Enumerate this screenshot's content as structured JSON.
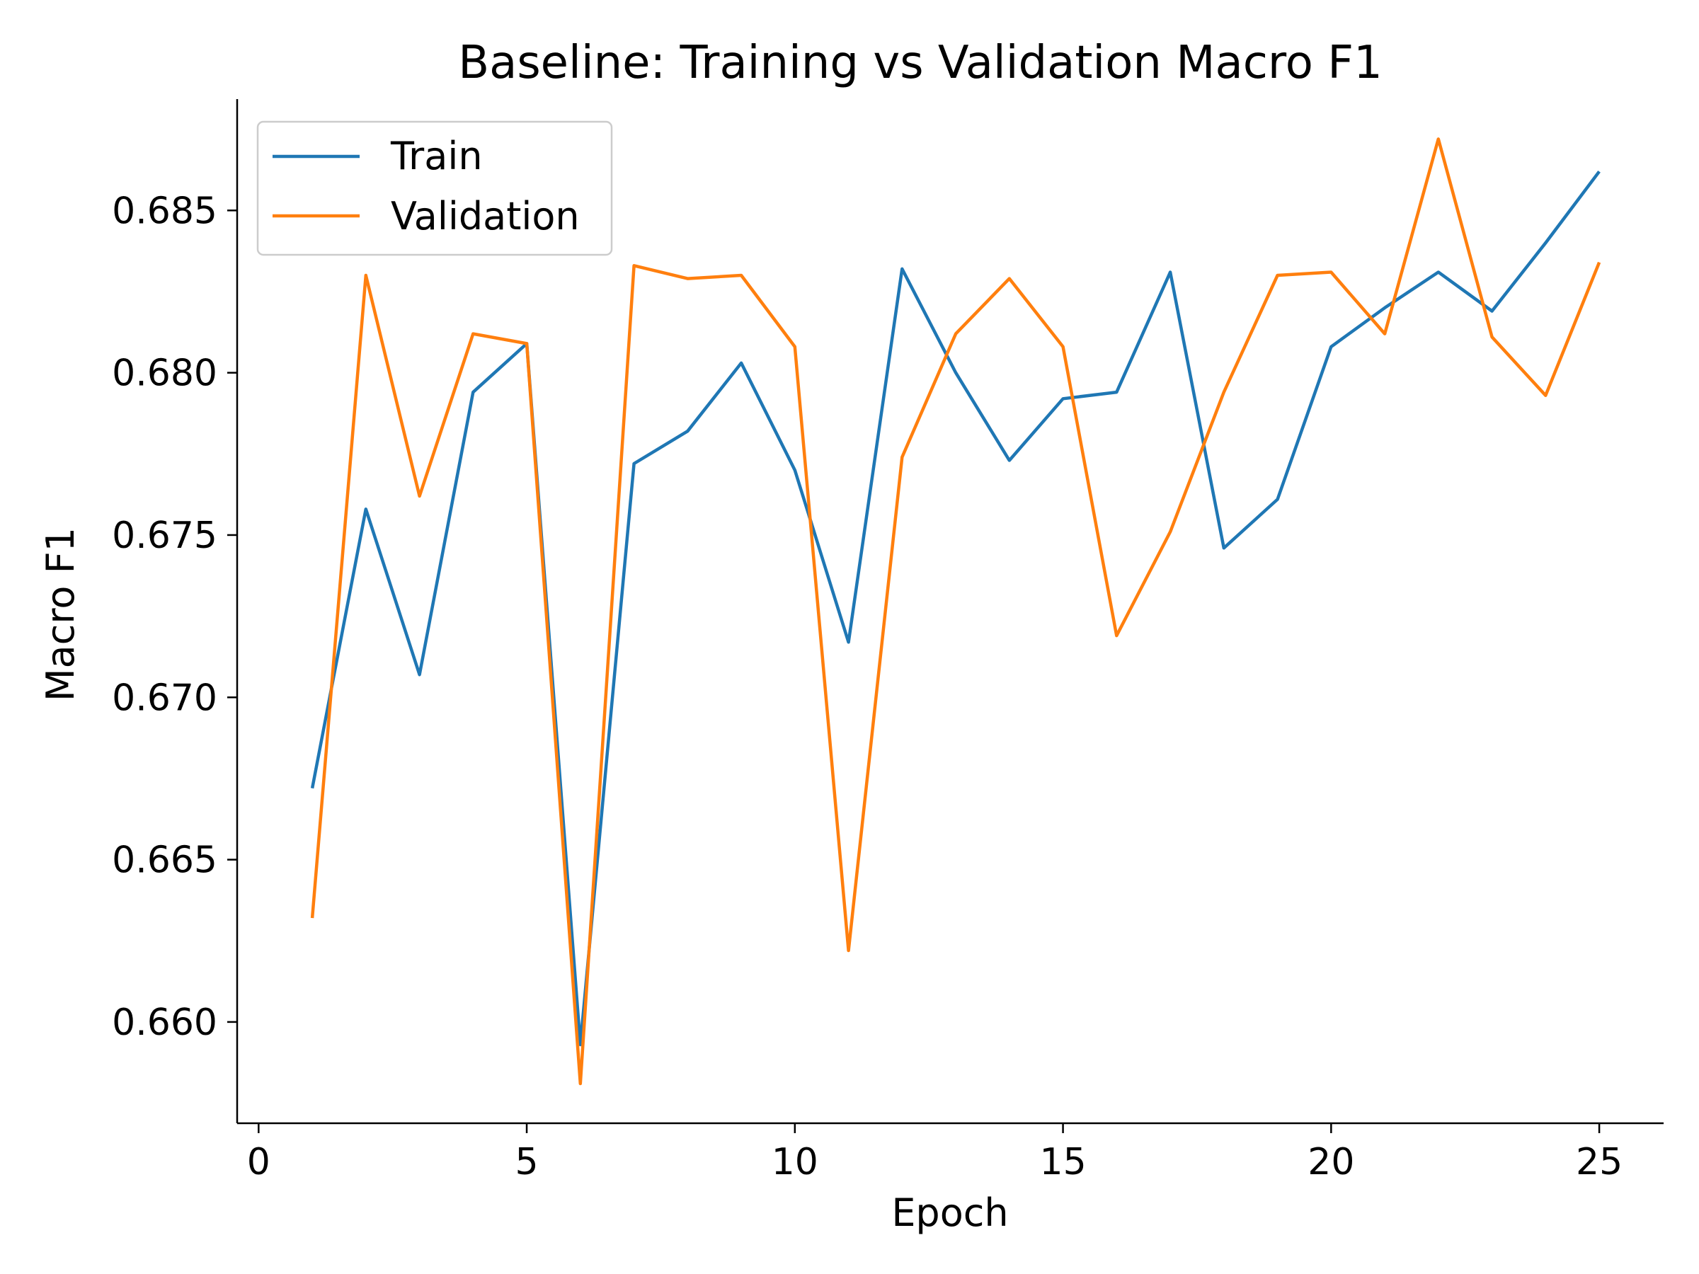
{
  "chart_data": {
    "type": "line",
    "title": "Baseline: Training vs Validation Macro F1",
    "xlabel": "Epoch",
    "ylabel": "Macro F1",
    "xlim": [
      -0.4,
      26.2
    ],
    "ylim": [
      0.65688,
      0.68843
    ],
    "xticks": [
      0,
      5,
      10,
      15,
      20,
      25
    ],
    "yticks": [
      0.66,
      0.665,
      0.67,
      0.675,
      0.68,
      0.685
    ],
    "ytick_labels": [
      "0.660",
      "0.665",
      "0.670",
      "0.675",
      "0.680",
      "0.685"
    ],
    "xtick_labels": [
      "0",
      "5",
      "10",
      "15",
      "20",
      "25"
    ],
    "grid": false,
    "legend_position": "top-left",
    "x": [
      1,
      2,
      3,
      4,
      5,
      6,
      7,
      8,
      9,
      10,
      11,
      12,
      13,
      14,
      15,
      16,
      17,
      18,
      19,
      20,
      21,
      22,
      23,
      24,
      25
    ],
    "series": [
      {
        "name": "Train",
        "color": "#1f77b4",
        "values": [
          0.6672,
          0.6758,
          0.6707,
          0.6794,
          0.6809,
          0.6593,
          0.6772,
          0.6782,
          0.6803,
          0.677,
          0.6717,
          0.6832,
          0.68,
          0.6773,
          0.6792,
          0.6794,
          0.6831,
          0.6746,
          0.6761,
          0.6808,
          0.682,
          0.6831,
          0.6819,
          0.684,
          0.6862
        ]
      },
      {
        "name": "Validation",
        "color": "#ff7f0e",
        "values": [
          0.6632,
          0.683,
          0.6762,
          0.6812,
          0.6809,
          0.6581,
          0.6833,
          0.6829,
          0.683,
          0.6808,
          0.6622,
          0.6774,
          0.6812,
          0.6829,
          0.6808,
          0.6719,
          0.6751,
          0.6794,
          0.683,
          0.6831,
          0.6812,
          0.6872,
          0.6811,
          0.6793,
          0.6834
        ]
      }
    ]
  }
}
